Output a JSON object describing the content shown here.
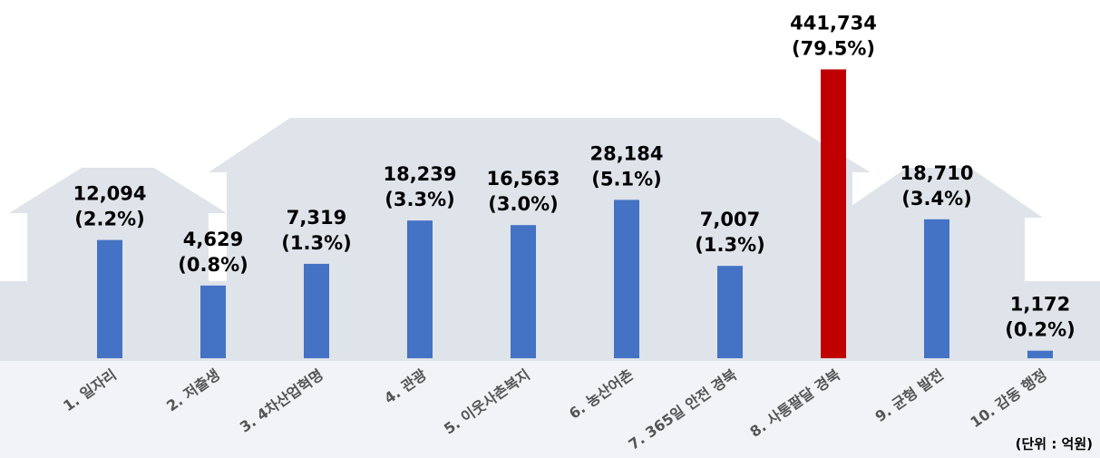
{
  "chart_data": {
    "type": "bar",
    "categories": [
      "1. 일자리",
      "2. 저출생",
      "3. 4차산업혁명",
      "4. 관광",
      "5. 이웃사촌복지",
      "6. 농산어촌",
      "7. 365일 안전 경북",
      "8. 사통팔달 경북",
      "9. 균형 발전",
      "10. 감동 행정"
    ],
    "values": [
      12094,
      4629,
      7319,
      18239,
      16563,
      28184,
      7007,
      441734,
      18710,
      1172
    ],
    "value_labels": [
      "12,094",
      "4,629",
      "7,319",
      "18,239",
      "16,563",
      "28,184",
      "7,007",
      "441,734",
      "18,710",
      "1,172"
    ],
    "percent_labels": [
      "(2.2%)",
      "(0.8%)",
      "(1.3%)",
      "(3.3%)",
      "(3.0%)",
      "(5.1%)",
      "(1.3%)",
      "(79.5%)",
      "(3.4%)",
      "(0.2%)"
    ],
    "colors": [
      "#4472c4",
      "#4472c4",
      "#4472c4",
      "#4472c4",
      "#4472c4",
      "#4472c4",
      "#4472c4",
      "#c00000",
      "#4472c4",
      "#4472c4"
    ],
    "log_scale": true,
    "ylim": [
      1000,
      500000
    ],
    "unit_label": "(단위 : 억원)"
  }
}
